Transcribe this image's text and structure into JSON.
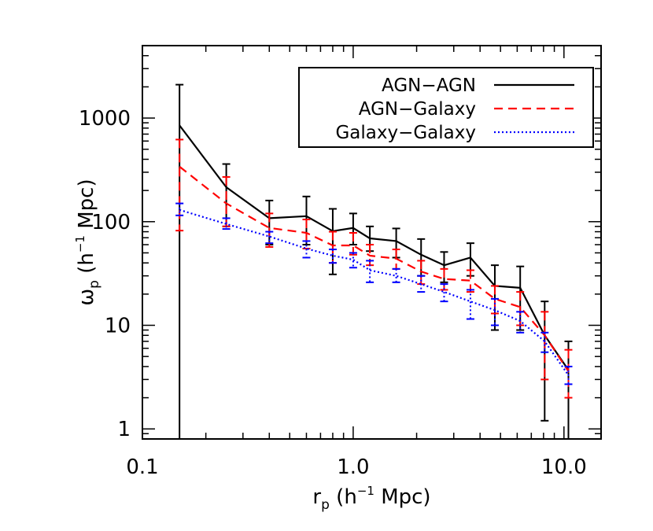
{
  "chart_data": {
    "type": "line",
    "xscale": "log",
    "yscale": "log",
    "xlim": [
      0.1,
      15
    ],
    "ylim": [
      0.8,
      5000
    ],
    "xlabel": {
      "main": "r",
      "sub": "p",
      "pre": " (h",
      "sup": "−1",
      "post": " Mpc)"
    },
    "ylabel": {
      "main": "ω",
      "sub": "p",
      "pre": " (h",
      "sup": "−1",
      "post": " Mpc)"
    },
    "xticks": [
      {
        "value": 0.1,
        "label": "0.1"
      },
      {
        "value": 1.0,
        "label": "1.0"
      },
      {
        "value": 10.0,
        "label": "10.0"
      }
    ],
    "yticks": [
      {
        "value": 1,
        "label": "1"
      },
      {
        "value": 10,
        "label": "10"
      },
      {
        "value": 100,
        "label": "100"
      },
      {
        "value": 1000,
        "label": "1000"
      }
    ],
    "legend_position": "top-right",
    "series": [
      {
        "name": "AGN−AGN",
        "color": "#000000",
        "dash": "solid",
        "x": [
          0.15,
          0.25,
          0.4,
          0.6,
          0.8,
          1.0,
          1.2,
          1.6,
          2.1,
          2.7,
          3.6,
          4.7,
          6.2,
          8.1,
          10.5
        ],
        "y": [
          850,
          215,
          108,
          113,
          81,
          87,
          69,
          65,
          48,
          38,
          45,
          24,
          23,
          8,
          3.7
        ],
        "err_low": [
          0.8,
          90,
          60,
          60,
          31,
          60,
          52,
          45,
          30,
          26,
          30,
          9,
          9,
          1.2,
          0.8
        ],
        "err_high": [
          2100,
          360,
          160,
          175,
          133,
          120,
          90,
          86,
          68,
          51,
          62,
          38,
          37,
          17,
          7
        ]
      },
      {
        "name": "AGN−Galaxy",
        "color": "#ff0000",
        "dash": "dashed",
        "x": [
          0.15,
          0.25,
          0.4,
          0.6,
          0.8,
          1.0,
          1.2,
          1.6,
          2.1,
          2.7,
          3.6,
          4.7,
          6.2,
          8.1,
          10.5
        ],
        "y": [
          340,
          150,
          87,
          78,
          59,
          59,
          47,
          44,
          33,
          28,
          27,
          18,
          15,
          8,
          3.6
        ],
        "err_low": [
          82,
          90,
          57,
          55,
          40,
          48,
          38,
          35,
          25,
          22,
          21,
          13,
          10,
          3,
          2
        ],
        "err_high": [
          620,
          270,
          120,
          105,
          80,
          78,
          60,
          54,
          42,
          35,
          34,
          24,
          21,
          13.5,
          5.8
        ]
      },
      {
        "name": "Galaxy−Galaxy",
        "color": "#0000ff",
        "dash": "dotted",
        "x": [
          0.15,
          0.25,
          0.4,
          0.6,
          0.8,
          1.0,
          1.2,
          1.6,
          2.1,
          2.7,
          3.6,
          4.7,
          6.2,
          8.1,
          10.5
        ],
        "y": [
          130,
          95,
          72,
          55,
          47,
          43,
          34,
          30,
          25,
          21,
          17,
          14,
          11,
          7,
          3.3
        ],
        "err_low": [
          115,
          85,
          62,
          45,
          40,
          36,
          26,
          26,
          21,
          17,
          11.5,
          10,
          8.5,
          5.5,
          2.7
        ],
        "err_high": [
          150,
          108,
          80,
          65,
          54,
          50,
          42,
          35,
          30,
          25,
          22,
          18,
          13.5,
          8.5,
          4
        ]
      }
    ]
  }
}
